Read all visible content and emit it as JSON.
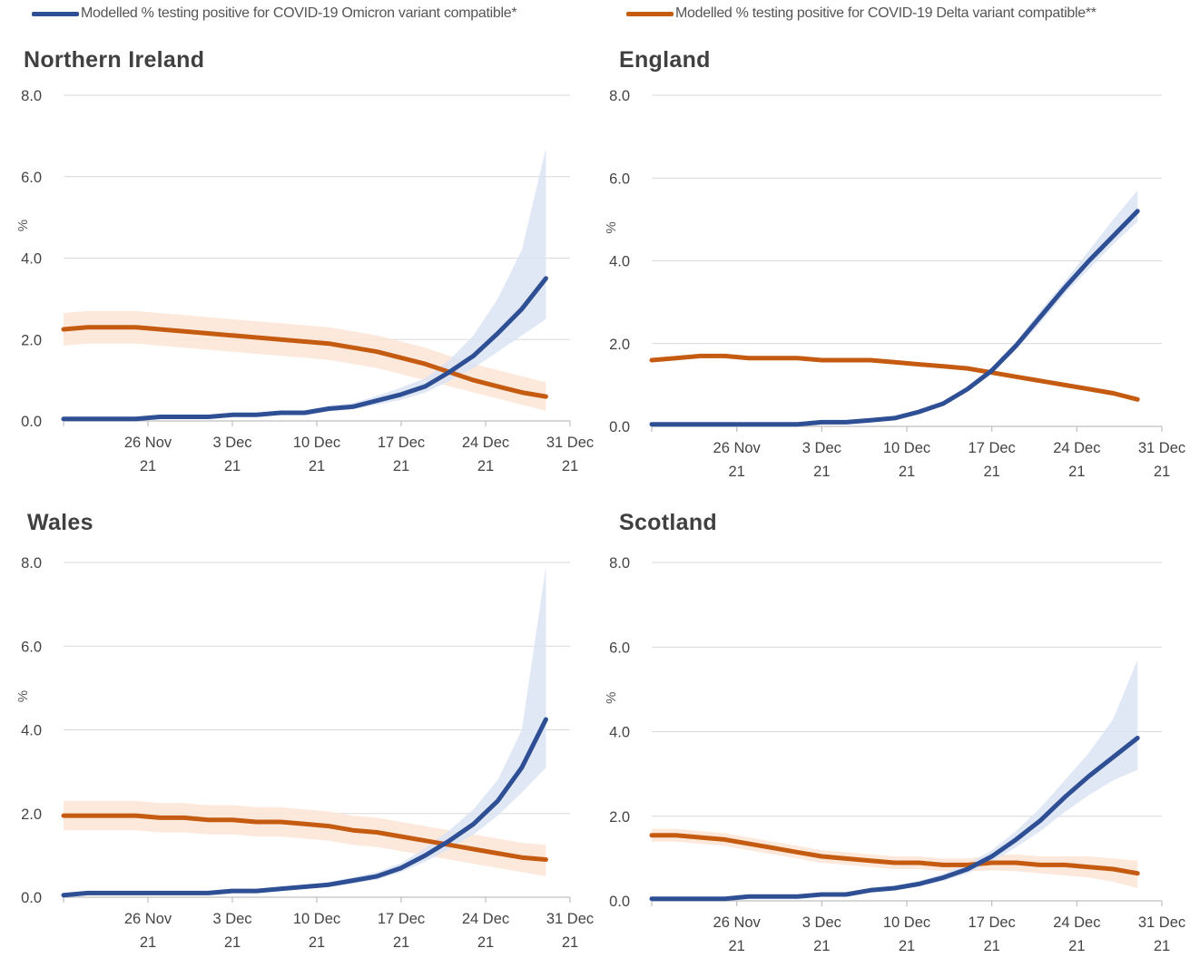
{
  "legend": {
    "omicron_label": "Modelled % testing positive for COVID-19 Omicron variant compatible*",
    "delta_label": "Modelled % testing positive for COVID-19 Delta variant compatible**"
  },
  "colors": {
    "omicron": "#2f4f94",
    "delta": "#c55a11",
    "omicron_band": "#dae3f3",
    "delta_band": "#fbe5d6",
    "grid": "#d9d9d9",
    "axis": "#bfbfbf"
  },
  "chart_data": [
    {
      "type": "line",
      "title": "Northern Ireland",
      "ylabel": "%",
      "ylim": [
        0,
        8
      ],
      "yticks": [
        "0.0",
        "2.0",
        "4.0",
        "6.0",
        "8.0"
      ],
      "xticks": [
        {
          "date": "2021-11-26",
          "line1": "26 Nov",
          "line2": "21"
        },
        {
          "date": "2021-12-03",
          "line1": "3 Dec",
          "line2": "21"
        },
        {
          "date": "2021-12-10",
          "line1": "10 Dec",
          "line2": "21"
        },
        {
          "date": "2021-12-17",
          "line1": "17 Dec",
          "line2": "21"
        },
        {
          "date": "2021-12-24",
          "line1": "24 Dec",
          "line2": "21"
        },
        {
          "date": "2021-12-31",
          "line1": "31 Dec",
          "line2": "21"
        }
      ],
      "xlim": [
        "2021-11-19",
        "2021-12-31"
      ],
      "grid": true,
      "series": [
        {
          "name": "Modelled % testing positive for COVID-19 Omicron variant compatible*",
          "x": [
            "2021-11-19",
            "2021-11-21",
            "2021-11-23",
            "2021-11-25",
            "2021-11-27",
            "2021-11-29",
            "2021-12-01",
            "2021-12-03",
            "2021-12-05",
            "2021-12-07",
            "2021-12-09",
            "2021-12-11",
            "2021-12-13",
            "2021-12-15",
            "2021-12-17",
            "2021-12-19",
            "2021-12-21",
            "2021-12-23",
            "2021-12-25",
            "2021-12-27",
            "2021-12-29"
          ],
          "y": [
            0.05,
            0.05,
            0.05,
            0.05,
            0.1,
            0.1,
            0.1,
            0.15,
            0.15,
            0.2,
            0.2,
            0.3,
            0.35,
            0.5,
            0.65,
            0.85,
            1.2,
            1.6,
            2.15,
            2.75,
            3.5
          ],
          "band_lower": [
            0.05,
            0.05,
            0.05,
            0.05,
            0.08,
            0.08,
            0.08,
            0.12,
            0.12,
            0.16,
            0.16,
            0.24,
            0.28,
            0.4,
            0.52,
            0.7,
            0.98,
            1.3,
            1.7,
            2.1,
            2.5
          ],
          "band_upper": [
            0.06,
            0.06,
            0.06,
            0.06,
            0.12,
            0.12,
            0.12,
            0.18,
            0.18,
            0.24,
            0.26,
            0.38,
            0.44,
            0.62,
            0.82,
            1.05,
            1.5,
            2.1,
            3.0,
            4.2,
            6.7
          ]
        },
        {
          "name": "Modelled % testing positive for COVID-19 Delta variant compatible**",
          "x": [
            "2021-11-19",
            "2021-11-21",
            "2021-11-23",
            "2021-11-25",
            "2021-11-27",
            "2021-11-29",
            "2021-12-01",
            "2021-12-03",
            "2021-12-05",
            "2021-12-07",
            "2021-12-09",
            "2021-12-11",
            "2021-12-13",
            "2021-12-15",
            "2021-12-17",
            "2021-12-19",
            "2021-12-21",
            "2021-12-23",
            "2021-12-25",
            "2021-12-27",
            "2021-12-29"
          ],
          "y": [
            2.25,
            2.3,
            2.3,
            2.3,
            2.25,
            2.2,
            2.15,
            2.1,
            2.05,
            2.0,
            1.95,
            1.9,
            1.8,
            1.7,
            1.55,
            1.4,
            1.2,
            1.0,
            0.85,
            0.7,
            0.6
          ],
          "band_lower": [
            1.85,
            1.9,
            1.9,
            1.9,
            1.85,
            1.8,
            1.75,
            1.7,
            1.65,
            1.6,
            1.55,
            1.5,
            1.4,
            1.3,
            1.15,
            1.0,
            0.85,
            0.7,
            0.55,
            0.4,
            0.25
          ],
          "band_upper": [
            2.65,
            2.7,
            2.7,
            2.7,
            2.65,
            2.6,
            2.55,
            2.5,
            2.45,
            2.4,
            2.35,
            2.3,
            2.2,
            2.1,
            1.95,
            1.8,
            1.6,
            1.4,
            1.25,
            1.1,
            0.95
          ]
        }
      ]
    },
    {
      "type": "line",
      "title": "England",
      "ylabel": "%",
      "ylim": [
        0,
        8
      ],
      "yticks": [
        "0.0",
        "2.0",
        "4.0",
        "6.0",
        "8.0"
      ],
      "xticks": [
        {
          "date": "2021-11-26",
          "line1": "26 Nov",
          "line2": "21"
        },
        {
          "date": "2021-12-03",
          "line1": "3 Dec",
          "line2": "21"
        },
        {
          "date": "2021-12-10",
          "line1": "10 Dec",
          "line2": "21"
        },
        {
          "date": "2021-12-17",
          "line1": "17 Dec",
          "line2": "21"
        },
        {
          "date": "2021-12-24",
          "line1": "24 Dec",
          "line2": "21"
        },
        {
          "date": "2021-12-31",
          "line1": "31 Dec",
          "line2": "21"
        }
      ],
      "xlim": [
        "2021-11-19",
        "2021-12-31"
      ],
      "grid": true,
      "series": [
        {
          "name": "Modelled % testing positive for COVID-19 Omicron variant compatible*",
          "x": [
            "2021-11-19",
            "2021-11-21",
            "2021-11-23",
            "2021-11-25",
            "2021-11-27",
            "2021-11-29",
            "2021-12-01",
            "2021-12-03",
            "2021-12-05",
            "2021-12-07",
            "2021-12-09",
            "2021-12-11",
            "2021-12-13",
            "2021-12-15",
            "2021-12-17",
            "2021-12-19",
            "2021-12-21",
            "2021-12-23",
            "2021-12-25",
            "2021-12-27",
            "2021-12-29"
          ],
          "y": [
            0.05,
            0.05,
            0.05,
            0.05,
            0.05,
            0.05,
            0.05,
            0.1,
            0.1,
            0.15,
            0.2,
            0.35,
            0.55,
            0.9,
            1.35,
            1.95,
            2.65,
            3.35,
            4.0,
            4.6,
            5.2
          ],
          "band_lower": [
            0.04,
            0.04,
            0.04,
            0.04,
            0.04,
            0.04,
            0.04,
            0.09,
            0.09,
            0.13,
            0.18,
            0.32,
            0.5,
            0.85,
            1.27,
            1.85,
            2.5,
            3.2,
            3.8,
            4.4,
            4.95
          ],
          "band_upper": [
            0.06,
            0.06,
            0.06,
            0.06,
            0.06,
            0.06,
            0.06,
            0.11,
            0.11,
            0.17,
            0.22,
            0.38,
            0.6,
            0.95,
            1.43,
            2.05,
            2.8,
            3.5,
            4.25,
            5.0,
            5.7
          ]
        },
        {
          "name": "Modelled % testing positive for COVID-19 Delta variant compatible**",
          "x": [
            "2021-11-19",
            "2021-11-21",
            "2021-11-23",
            "2021-11-25",
            "2021-11-27",
            "2021-11-29",
            "2021-12-01",
            "2021-12-03",
            "2021-12-05",
            "2021-12-07",
            "2021-12-09",
            "2021-12-11",
            "2021-12-13",
            "2021-12-15",
            "2021-12-17",
            "2021-12-19",
            "2021-12-21",
            "2021-12-23",
            "2021-12-25",
            "2021-12-27",
            "2021-12-29"
          ],
          "y": [
            1.6,
            1.65,
            1.7,
            1.7,
            1.65,
            1.65,
            1.65,
            1.6,
            1.6,
            1.6,
            1.55,
            1.5,
            1.45,
            1.4,
            1.3,
            1.2,
            1.1,
            1.0,
            0.9,
            0.8,
            0.65
          ],
          "band_lower": [
            1.55,
            1.6,
            1.65,
            1.65,
            1.6,
            1.6,
            1.6,
            1.55,
            1.55,
            1.55,
            1.5,
            1.45,
            1.4,
            1.35,
            1.25,
            1.15,
            1.05,
            0.95,
            0.85,
            0.74,
            0.6
          ],
          "band_upper": [
            1.65,
            1.7,
            1.75,
            1.75,
            1.7,
            1.7,
            1.7,
            1.65,
            1.65,
            1.65,
            1.6,
            1.55,
            1.5,
            1.45,
            1.35,
            1.25,
            1.15,
            1.05,
            0.95,
            0.86,
            0.7
          ]
        }
      ]
    },
    {
      "type": "line",
      "title": "Wales",
      "ylabel": "%",
      "ylim": [
        0,
        8
      ],
      "yticks": [
        "0.0",
        "2.0",
        "4.0",
        "6.0",
        "8.0"
      ],
      "xticks": [
        {
          "date": "2021-11-26",
          "line1": "26 Nov",
          "line2": "21"
        },
        {
          "date": "2021-12-03",
          "line1": "3 Dec",
          "line2": "21"
        },
        {
          "date": "2021-12-10",
          "line1": "10 Dec",
          "line2": "21"
        },
        {
          "date": "2021-12-17",
          "line1": "17 Dec",
          "line2": "21"
        },
        {
          "date": "2021-12-24",
          "line1": "24 Dec",
          "line2": "21"
        },
        {
          "date": "2021-12-31",
          "line1": "31 Dec",
          "line2": "21"
        }
      ],
      "xlim": [
        "2021-11-19",
        "2021-12-31"
      ],
      "grid": true,
      "series": [
        {
          "name": "Modelled % testing positive for COVID-19 Omicron variant compatible*",
          "x": [
            "2021-11-19",
            "2021-11-21",
            "2021-11-23",
            "2021-11-25",
            "2021-11-27",
            "2021-11-29",
            "2021-12-01",
            "2021-12-03",
            "2021-12-05",
            "2021-12-07",
            "2021-12-09",
            "2021-12-11",
            "2021-12-13",
            "2021-12-15",
            "2021-12-17",
            "2021-12-19",
            "2021-12-21",
            "2021-12-23",
            "2021-12-25",
            "2021-12-27",
            "2021-12-29"
          ],
          "y": [
            0.05,
            0.1,
            0.1,
            0.1,
            0.1,
            0.1,
            0.1,
            0.15,
            0.15,
            0.2,
            0.25,
            0.3,
            0.4,
            0.5,
            0.7,
            1.0,
            1.35,
            1.75,
            2.3,
            3.1,
            4.25
          ],
          "band_lower": [
            0.04,
            0.08,
            0.08,
            0.08,
            0.08,
            0.08,
            0.08,
            0.12,
            0.12,
            0.16,
            0.2,
            0.25,
            0.33,
            0.42,
            0.6,
            0.85,
            1.15,
            1.5,
            1.95,
            2.5,
            3.1
          ],
          "band_upper": [
            0.06,
            0.12,
            0.12,
            0.12,
            0.12,
            0.12,
            0.12,
            0.18,
            0.18,
            0.24,
            0.3,
            0.36,
            0.48,
            0.6,
            0.82,
            1.18,
            1.6,
            2.1,
            2.8,
            4.0,
            7.9
          ]
        },
        {
          "name": "Modelled % testing positive for COVID-19 Delta variant compatible**",
          "x": [
            "2021-11-19",
            "2021-11-21",
            "2021-11-23",
            "2021-11-25",
            "2021-11-27",
            "2021-11-29",
            "2021-12-01",
            "2021-12-03",
            "2021-12-05",
            "2021-12-07",
            "2021-12-09",
            "2021-12-11",
            "2021-12-13",
            "2021-12-15",
            "2021-12-17",
            "2021-12-19",
            "2021-12-21",
            "2021-12-23",
            "2021-12-25",
            "2021-12-27",
            "2021-12-29"
          ],
          "y": [
            1.95,
            1.95,
            1.95,
            1.95,
            1.9,
            1.9,
            1.85,
            1.85,
            1.8,
            1.8,
            1.75,
            1.7,
            1.6,
            1.55,
            1.45,
            1.35,
            1.25,
            1.15,
            1.05,
            0.95,
            0.9
          ],
          "band_lower": [
            1.6,
            1.6,
            1.6,
            1.6,
            1.55,
            1.55,
            1.5,
            1.5,
            1.45,
            1.45,
            1.4,
            1.35,
            1.25,
            1.2,
            1.1,
            1.0,
            0.9,
            0.8,
            0.7,
            0.6,
            0.5
          ],
          "band_upper": [
            2.3,
            2.3,
            2.3,
            2.3,
            2.25,
            2.25,
            2.2,
            2.2,
            2.15,
            2.15,
            2.1,
            2.05,
            1.95,
            1.9,
            1.8,
            1.7,
            1.6,
            1.5,
            1.4,
            1.3,
            1.25
          ]
        }
      ]
    },
    {
      "type": "line",
      "title": "Scotland",
      "ylabel": "%",
      "ylim": [
        0,
        8
      ],
      "yticks": [
        "0.0",
        "2.0",
        "4.0",
        "6.0",
        "8.0"
      ],
      "xticks": [
        {
          "date": "2021-11-26",
          "line1": "26 Nov",
          "line2": "21"
        },
        {
          "date": "2021-12-03",
          "line1": "3 Dec",
          "line2": "21"
        },
        {
          "date": "2021-12-10",
          "line1": "10 Dec",
          "line2": "21"
        },
        {
          "date": "2021-12-17",
          "line1": "17 Dec",
          "line2": "21"
        },
        {
          "date": "2021-12-24",
          "line1": "24 Dec",
          "line2": "21"
        },
        {
          "date": "2021-12-31",
          "line1": "31 Dec",
          "line2": "21"
        }
      ],
      "xlim": [
        "2021-11-19",
        "2021-12-31"
      ],
      "grid": true,
      "series": [
        {
          "name": "Modelled % testing positive for COVID-19 Omicron variant compatible*",
          "x": [
            "2021-11-19",
            "2021-11-21",
            "2021-11-23",
            "2021-11-25",
            "2021-11-27",
            "2021-11-29",
            "2021-12-01",
            "2021-12-03",
            "2021-12-05",
            "2021-12-07",
            "2021-12-09",
            "2021-12-11",
            "2021-12-13",
            "2021-12-15",
            "2021-12-17",
            "2021-12-19",
            "2021-12-21",
            "2021-12-23",
            "2021-12-25",
            "2021-12-27",
            "2021-12-29"
          ],
          "y": [
            0.05,
            0.05,
            0.05,
            0.05,
            0.1,
            0.1,
            0.1,
            0.15,
            0.15,
            0.25,
            0.3,
            0.4,
            0.55,
            0.75,
            1.05,
            1.45,
            1.9,
            2.45,
            2.95,
            3.4,
            3.85
          ],
          "band_lower": [
            0.04,
            0.04,
            0.04,
            0.04,
            0.08,
            0.08,
            0.08,
            0.12,
            0.12,
            0.2,
            0.25,
            0.34,
            0.47,
            0.65,
            0.92,
            1.27,
            1.65,
            2.1,
            2.5,
            2.85,
            3.1
          ],
          "band_upper": [
            0.06,
            0.06,
            0.06,
            0.06,
            0.12,
            0.12,
            0.12,
            0.18,
            0.18,
            0.3,
            0.36,
            0.47,
            0.64,
            0.87,
            1.2,
            1.65,
            2.2,
            2.85,
            3.5,
            4.3,
            5.7
          ]
        },
        {
          "name": "Modelled % testing positive for COVID-19 Delta variant compatible**",
          "x": [
            "2021-11-19",
            "2021-11-21",
            "2021-11-23",
            "2021-11-25",
            "2021-11-27",
            "2021-11-29",
            "2021-12-01",
            "2021-12-03",
            "2021-12-05",
            "2021-12-07",
            "2021-12-09",
            "2021-12-11",
            "2021-12-13",
            "2021-12-15",
            "2021-12-17",
            "2021-12-19",
            "2021-12-21",
            "2021-12-23",
            "2021-12-25",
            "2021-12-27",
            "2021-12-29"
          ],
          "y": [
            1.55,
            1.55,
            1.5,
            1.45,
            1.35,
            1.25,
            1.15,
            1.05,
            1.0,
            0.95,
            0.9,
            0.9,
            0.85,
            0.85,
            0.9,
            0.9,
            0.85,
            0.85,
            0.8,
            0.75,
            0.65
          ],
          "band_lower": [
            1.4,
            1.4,
            1.35,
            1.3,
            1.2,
            1.1,
            1.0,
            0.9,
            0.85,
            0.8,
            0.75,
            0.75,
            0.7,
            0.7,
            0.72,
            0.7,
            0.65,
            0.6,
            0.55,
            0.45,
            0.3
          ],
          "band_upper": [
            1.7,
            1.7,
            1.65,
            1.6,
            1.5,
            1.4,
            1.3,
            1.2,
            1.15,
            1.1,
            1.05,
            1.05,
            1.0,
            1.0,
            1.08,
            1.1,
            1.05,
            1.05,
            1.05,
            1.0,
            0.95
          ]
        }
      ]
    }
  ]
}
